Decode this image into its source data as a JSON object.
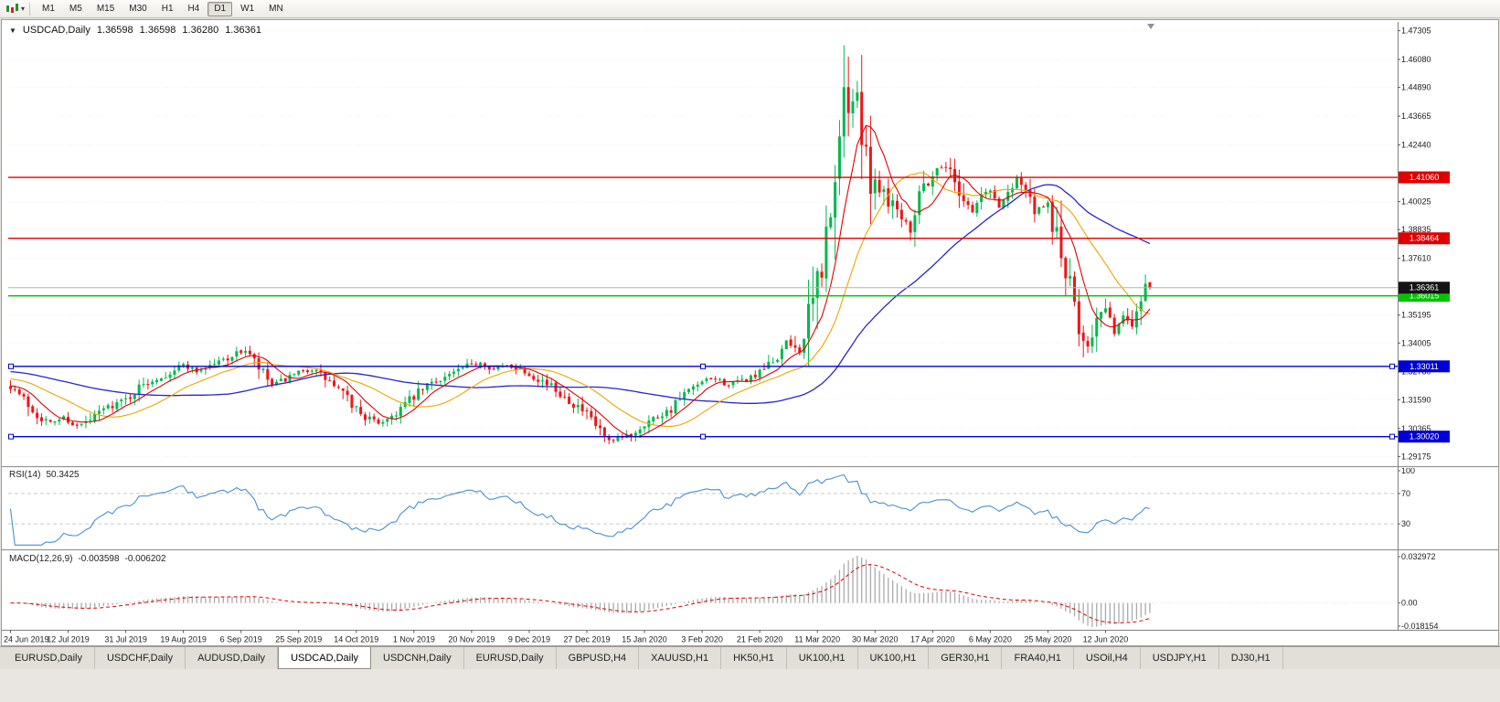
{
  "app": {
    "toolbar": {
      "chart_icon": "candlestick-chart",
      "periods": [
        {
          "label": "M1",
          "active": false
        },
        {
          "label": "M5",
          "active": false
        },
        {
          "label": "M15",
          "active": false
        },
        {
          "label": "M30",
          "active": false
        },
        {
          "label": "H1",
          "active": false
        },
        {
          "label": "H4",
          "active": false
        },
        {
          "label": "D1",
          "active": true
        },
        {
          "label": "W1",
          "active": false
        },
        {
          "label": "MN",
          "active": false
        }
      ]
    }
  },
  "chart": {
    "title_symbol": "USDCAD,Daily",
    "open": "1.36598",
    "high": "1.36598",
    "low": "1.36280",
    "close": "1.36361"
  },
  "indicators": {
    "rsi": {
      "name": "RSI(14)",
      "value": "50.3425",
      "levels": [
        "100",
        "70",
        "30"
      ],
      "line_color": "#4A8FD2"
    },
    "macd": {
      "name": "MACD(12,26,9)",
      "value_main": "-0.003598",
      "value_signal": "-0.006202",
      "axis_top": "0.032972",
      "axis_zero": "0.00",
      "axis_bottom": "-0.018154",
      "histogram_color": "#ABABAB",
      "signal_color": "#E00000"
    }
  },
  "price_axis": {
    "labels": [
      "1.47305",
      "1.46080",
      "1.44890",
      "1.43665",
      "1.42440",
      "1.40025",
      "1.38835",
      "1.37610",
      "1.35195",
      "1.34005",
      "1.32780",
      "1.31590",
      "1.30365",
      "1.29175"
    ]
  },
  "price_lines": [
    {
      "value": 1.4106,
      "label": "1.41060",
      "color": "#E00000",
      "selected": false
    },
    {
      "value": 1.38464,
      "label": "1.38464",
      "color": "#E00000",
      "selected": false
    },
    {
      "value": 1.36015,
      "label": "1.36015",
      "color": "#00C400",
      "selected": false
    },
    {
      "value": 1.33011,
      "label": "1.33011",
      "color": "#0000D8",
      "selected": true
    },
    {
      "value": 1.3002,
      "label": "1.30020",
      "color": "#0000D8",
      "selected": true
    }
  ],
  "bid": {
    "value": 1.36361,
    "label": "1.36361",
    "tag_color": "#141414",
    "line_color": "#B4B4B4"
  },
  "date_axis": [
    "24 Jun 2019",
    "12 Jul 2019",
    "31 Jul 2019",
    "19 Aug 2019",
    "6 Sep 2019",
    "25 Sep 2019",
    "14 Oct 2019",
    "1 Nov 2019",
    "20 Nov 2019",
    "9 Dec 2019",
    "27 Dec 2019",
    "15 Jan 2020",
    "3 Feb 2020",
    "21 Feb 2020",
    "11 Mar 2020",
    "30 Mar 2020",
    "17 Apr 2020",
    "6 May 2020",
    "25 May 2020",
    "12 Jun 2020"
  ],
  "tabs": [
    {
      "label": "EURUSD,Daily",
      "active": false
    },
    {
      "label": "USDCHF,Daily",
      "active": false
    },
    {
      "label": "AUDUSD,Daily",
      "active": false
    },
    {
      "label": "USDCAD,Daily",
      "active": true
    },
    {
      "label": "USDCNH,Daily",
      "active": false
    },
    {
      "label": "EURUSD,Daily",
      "active": false
    },
    {
      "label": "GBPUSD,H4",
      "active": false
    },
    {
      "label": "XAUUSD,H1",
      "active": false
    },
    {
      "label": "HK50,H1",
      "active": false
    },
    {
      "label": "UK100,H1",
      "active": false
    },
    {
      "label": "UK100,H1",
      "active": false
    },
    {
      "label": "GER30,H1",
      "active": false
    },
    {
      "label": "FRA40,H1",
      "active": false
    },
    {
      "label": "USOil,H4",
      "active": false
    },
    {
      "label": "USDJPY,H1",
      "active": false
    },
    {
      "label": "DJ30,H1",
      "active": false
    }
  ],
  "chart_data": {
    "type": "candlestick",
    "symbol": "USDCAD",
    "timeframe": "Daily",
    "x_start_date": "24 Jun 2019",
    "x_end_date": "Jun 2020",
    "candle_count": 258,
    "date_label_step": 13,
    "price_axis_range": [
      1.288,
      1.476
    ],
    "up_color": "#00B84C",
    "down_color": "#EE1515",
    "horizontal_levels": [
      1.4106,
      1.38464,
      1.36015,
      1.33011,
      1.3002
    ],
    "current_bid": 1.36361,
    "rsi_current": 50.3425,
    "macd_current": [
      -0.003598,
      -0.006202
    ],
    "moving_averages": [
      {
        "period": 8,
        "type": "sma",
        "color": "#E00000",
        "seed": 1.322
      },
      {
        "period": 20,
        "type": "sma",
        "color": "#EFA400",
        "seed": 1.325
      },
      {
        "period": 50,
        "type": "sma",
        "color": "#2626CC",
        "seed": 1.328
      }
    ],
    "price_waypoints": [
      [
        0,
        1.322
      ],
      [
        3,
        1.316
      ],
      [
        6,
        1.3095
      ],
      [
        9,
        1.306
      ],
      [
        12,
        1.3085
      ],
      [
        15,
        1.3045
      ],
      [
        18,
        1.307
      ],
      [
        21,
        1.312
      ],
      [
        24,
        1.3145
      ],
      [
        26,
        1.316
      ],
      [
        29,
        1.321
      ],
      [
        32,
        1.3245
      ],
      [
        35,
        1.3265
      ],
      [
        39,
        1.331
      ],
      [
        42,
        1.328
      ],
      [
        45,
        1.3305
      ],
      [
        48,
        1.333
      ],
      [
        53,
        1.337
      ],
      [
        56,
        1.329
      ],
      [
        59,
        1.322
      ],
      [
        62,
        1.3245
      ],
      [
        65,
        1.327
      ],
      [
        68,
        1.329
      ],
      [
        71,
        1.325
      ],
      [
        74,
        1.32
      ],
      [
        77,
        1.314
      ],
      [
        80,
        1.3085
      ],
      [
        83,
        1.306
      ],
      [
        86,
        1.309
      ],
      [
        89,
        1.314
      ],
      [
        91,
        1.317
      ],
      [
        94,
        1.322
      ],
      [
        97,
        1.325
      ],
      [
        100,
        1.3275
      ],
      [
        103,
        1.33
      ],
      [
        106,
        1.332
      ],
      [
        109,
        1.329
      ],
      [
        112,
        1.3305
      ],
      [
        115,
        1.329
      ],
      [
        117,
        1.327
      ],
      [
        120,
        1.324
      ],
      [
        123,
        1.32
      ],
      [
        126,
        1.316
      ],
      [
        129,
        1.311
      ],
      [
        131,
        1.307
      ],
      [
        133,
        1.3025
      ],
      [
        135,
        1.2975
      ],
      [
        138,
        1.2995
      ],
      [
        141,
        1.3025
      ],
      [
        143,
        1.306
      ],
      [
        146,
        1.309
      ],
      [
        149,
        1.312
      ],
      [
        152,
        1.318
      ],
      [
        156,
        1.323
      ],
      [
        159,
        1.325
      ],
      [
        162,
        1.322
      ],
      [
        165,
        1.324
      ],
      [
        169,
        1.327
      ],
      [
        172,
        1.332
      ],
      [
        175,
        1.34
      ],
      [
        177,
        1.338
      ],
      [
        179,
        1.342
      ],
      [
        181,
        1.356
      ],
      [
        183,
        1.375
      ],
      [
        185,
        1.392
      ],
      [
        186,
        1.401
      ],
      [
        187,
        1.428
      ],
      [
        188,
        1.449
      ],
      [
        189,
        1.438
      ],
      [
        190,
        1.445
      ],
      [
        191,
        1.442
      ],
      [
        193,
        1.428
      ],
      [
        194,
        1.406
      ],
      [
        195,
        1.409
      ],
      [
        197,
        1.405
      ],
      [
        199,
        1.4
      ],
      [
        201,
        1.395
      ],
      [
        203,
        1.389
      ],
      [
        205,
        1.405
      ],
      [
        207,
        1.409
      ],
      [
        209,
        1.414
      ],
      [
        211,
        1.416
      ],
      [
        213,
        1.409
      ],
      [
        215,
        1.402
      ],
      [
        217,
        1.396
      ],
      [
        219,
        1.403
      ],
      [
        221,
        1.405
      ],
      [
        223,
        1.398
      ],
      [
        225,
        1.404
      ],
      [
        227,
        1.411
      ],
      [
        229,
        1.405
      ],
      [
        231,
        1.396
      ],
      [
        234,
        1.398
      ],
      [
        236,
        1.385
      ],
      [
        238,
        1.37
      ],
      [
        240,
        1.354
      ],
      [
        241,
        1.346
      ],
      [
        243,
        1.34
      ],
      [
        245,
        1.35
      ],
      [
        247,
        1.354
      ],
      [
        249,
        1.345
      ],
      [
        251,
        1.351
      ],
      [
        253,
        1.349
      ],
      [
        255,
        1.36
      ],
      [
        256,
        1.3655
      ],
      [
        257,
        1.36361
      ]
    ],
    "key_candles": [
      {
        "i": 187,
        "o": 1.41,
        "h": 1.435,
        "l": 1.403,
        "c": 1.428
      },
      {
        "i": 188,
        "o": 1.428,
        "h": 1.4668,
        "l": 1.419,
        "c": 1.449
      },
      {
        "i": 189,
        "o": 1.449,
        "h": 1.462,
        "l": 1.428,
        "c": 1.438
      },
      {
        "i": 242,
        "o": 1.3445,
        "h": 1.3475,
        "l": 1.334,
        "c": 1.341
      },
      {
        "i": 257,
        "o": 1.36598,
        "h": 1.36598,
        "l": 1.3628,
        "c": 1.36361
      }
    ]
  }
}
